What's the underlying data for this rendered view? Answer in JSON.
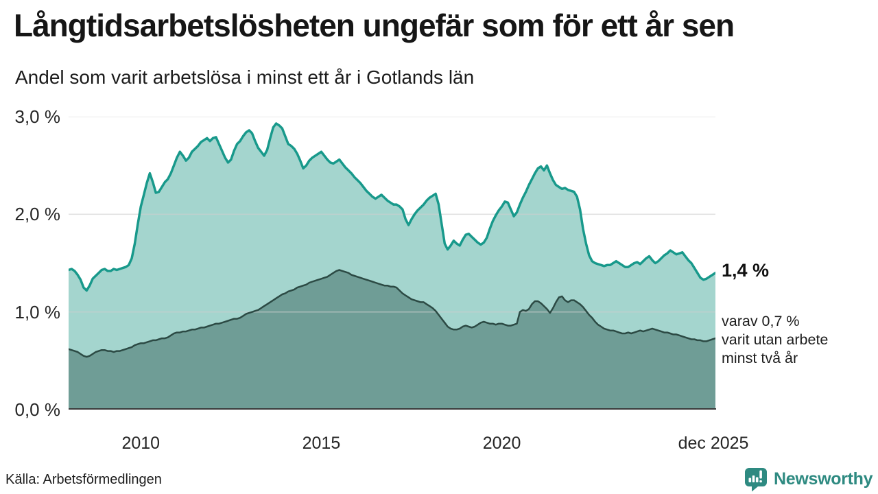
{
  "header": {
    "title": "Långtidsarbetslösheten ungefär som för ett år sen",
    "subtitle": "Andel som varit arbetslösa i minst ett år i Gotlands län"
  },
  "chart_data": {
    "type": "area",
    "title": "Långtidsarbetslösheten ungefär som för ett år sen",
    "subtitle": "Andel som varit arbetslösa i minst ett år i Gotlands län",
    "unit": "%",
    "x_start_year": 2008,
    "x_step_months": 1,
    "x_end": "dec 2025",
    "ylim": [
      0,
      3
    ],
    "grid": true,
    "colors": {
      "grid": "#cfcfcf",
      "baseline": "#3a3a3a",
      "text": "#1c1c1c",
      "brand_teal": "#2e8a81"
    },
    "yticks": [
      {
        "value": 0,
        "label": "0,0 %"
      },
      {
        "value": 1,
        "label": "1,0 %"
      },
      {
        "value": 2,
        "label": "2,0 %"
      },
      {
        "value": 3,
        "label": "3,0 %"
      }
    ],
    "xticks": [
      {
        "year": 2010,
        "label": "2010"
      },
      {
        "year": 2015,
        "label": "2015"
      },
      {
        "year": 2020,
        "label": "2020"
      },
      {
        "year": 2025.917,
        "label": "dec 2025"
      }
    ],
    "series": [
      {
        "name": "arbetslösa minst ett år",
        "line_color": "#18998b",
        "fill_color": "#a4d5ce",
        "end_value_label": "1,4 %",
        "values": [
          1.43,
          1.44,
          1.42,
          1.38,
          1.33,
          1.25,
          1.22,
          1.27,
          1.34,
          1.37,
          1.4,
          1.43,
          1.44,
          1.42,
          1.42,
          1.44,
          1.43,
          1.44,
          1.45,
          1.46,
          1.48,
          1.55,
          1.7,
          1.9,
          2.08,
          2.2,
          2.32,
          2.42,
          2.33,
          2.22,
          2.23,
          2.28,
          2.33,
          2.36,
          2.42,
          2.5,
          2.58,
          2.64,
          2.6,
          2.55,
          2.58,
          2.64,
          2.67,
          2.7,
          2.74,
          2.76,
          2.78,
          2.75,
          2.78,
          2.79,
          2.72,
          2.65,
          2.58,
          2.53,
          2.56,
          2.65,
          2.72,
          2.75,
          2.8,
          2.84,
          2.86,
          2.83,
          2.75,
          2.68,
          2.64,
          2.6,
          2.66,
          2.78,
          2.89,
          2.93,
          2.91,
          2.88,
          2.8,
          2.72,
          2.7,
          2.67,
          2.62,
          2.55,
          2.47,
          2.5,
          2.55,
          2.58,
          2.6,
          2.62,
          2.64,
          2.6,
          2.56,
          2.53,
          2.52,
          2.54,
          2.56,
          2.52,
          2.48,
          2.45,
          2.42,
          2.38,
          2.35,
          2.32,
          2.28,
          2.24,
          2.21,
          2.18,
          2.16,
          2.18,
          2.2,
          2.17,
          2.14,
          2.12,
          2.1,
          2.1,
          2.08,
          2.05,
          1.95,
          1.89,
          1.95,
          2.0,
          2.04,
          2.07,
          2.1,
          2.14,
          2.17,
          2.19,
          2.21,
          2.1,
          1.9,
          1.7,
          1.64,
          1.68,
          1.73,
          1.7,
          1.68,
          1.74,
          1.79,
          1.8,
          1.77,
          1.74,
          1.71,
          1.69,
          1.71,
          1.76,
          1.85,
          1.93,
          1.99,
          2.04,
          2.08,
          2.13,
          2.12,
          2.05,
          1.98,
          2.02,
          2.1,
          2.17,
          2.23,
          2.3,
          2.36,
          2.42,
          2.47,
          2.49,
          2.45,
          2.5,
          2.42,
          2.35,
          2.3,
          2.28,
          2.26,
          2.27,
          2.25,
          2.24,
          2.23,
          2.18,
          2.05,
          1.85,
          1.7,
          1.58,
          1.52,
          1.5,
          1.49,
          1.48,
          1.47,
          1.48,
          1.48,
          1.5,
          1.52,
          1.5,
          1.48,
          1.46,
          1.46,
          1.48,
          1.5,
          1.51,
          1.49,
          1.52,
          1.55,
          1.57,
          1.53,
          1.5,
          1.52,
          1.55,
          1.58,
          1.6,
          1.63,
          1.61,
          1.59,
          1.6,
          1.61,
          1.57,
          1.53,
          1.5,
          1.45,
          1.4,
          1.35,
          1.33,
          1.34,
          1.36,
          1.38,
          1.4
        ]
      },
      {
        "name": "varav utan arbete minst två år",
        "line_color": "#2c4a44",
        "fill_color": "#6f9d96",
        "end_value_label": "0,7 %",
        "values": [
          0.62,
          0.61,
          0.6,
          0.59,
          0.57,
          0.55,
          0.54,
          0.55,
          0.57,
          0.59,
          0.6,
          0.61,
          0.61,
          0.6,
          0.6,
          0.59,
          0.6,
          0.6,
          0.61,
          0.62,
          0.63,
          0.64,
          0.66,
          0.67,
          0.68,
          0.68,
          0.69,
          0.7,
          0.71,
          0.71,
          0.72,
          0.73,
          0.73,
          0.74,
          0.76,
          0.78,
          0.79,
          0.79,
          0.8,
          0.8,
          0.81,
          0.82,
          0.82,
          0.83,
          0.84,
          0.84,
          0.85,
          0.86,
          0.87,
          0.88,
          0.88,
          0.89,
          0.9,
          0.91,
          0.92,
          0.93,
          0.93,
          0.94,
          0.96,
          0.98,
          0.99,
          1.0,
          1.01,
          1.02,
          1.04,
          1.06,
          1.08,
          1.1,
          1.12,
          1.14,
          1.16,
          1.18,
          1.19,
          1.21,
          1.22,
          1.23,
          1.25,
          1.26,
          1.27,
          1.28,
          1.3,
          1.31,
          1.32,
          1.33,
          1.34,
          1.35,
          1.36,
          1.38,
          1.4,
          1.42,
          1.43,
          1.42,
          1.41,
          1.4,
          1.38,
          1.37,
          1.36,
          1.35,
          1.34,
          1.33,
          1.32,
          1.31,
          1.3,
          1.29,
          1.28,
          1.27,
          1.27,
          1.26,
          1.26,
          1.25,
          1.22,
          1.19,
          1.17,
          1.15,
          1.13,
          1.12,
          1.11,
          1.1,
          1.1,
          1.08,
          1.06,
          1.04,
          1.01,
          0.97,
          0.93,
          0.89,
          0.85,
          0.83,
          0.82,
          0.82,
          0.83,
          0.85,
          0.86,
          0.85,
          0.84,
          0.85,
          0.87,
          0.89,
          0.9,
          0.89,
          0.88,
          0.88,
          0.87,
          0.88,
          0.88,
          0.87,
          0.86,
          0.86,
          0.87,
          0.88,
          1.0,
          1.02,
          1.01,
          1.03,
          1.08,
          1.11,
          1.11,
          1.09,
          1.06,
          1.03,
          0.99,
          1.04,
          1.1,
          1.15,
          1.16,
          1.12,
          1.1,
          1.12,
          1.12,
          1.1,
          1.08,
          1.05,
          1.01,
          0.97,
          0.94,
          0.9,
          0.87,
          0.85,
          0.83,
          0.82,
          0.81,
          0.81,
          0.8,
          0.79,
          0.78,
          0.78,
          0.79,
          0.78,
          0.79,
          0.8,
          0.81,
          0.8,
          0.81,
          0.82,
          0.83,
          0.82,
          0.81,
          0.8,
          0.79,
          0.79,
          0.78,
          0.77,
          0.77,
          0.76,
          0.75,
          0.74,
          0.73,
          0.72,
          0.72,
          0.71,
          0.71,
          0.7,
          0.7,
          0.71,
          0.72,
          0.73
        ]
      }
    ],
    "annotations": {
      "end_value_main": "1,4 %",
      "end_note_lines": [
        "varav 0,7 %",
        "varit utan arbete",
        "minst två år"
      ]
    }
  },
  "footer": {
    "source": "Källa: Arbetsförmedlingen",
    "brand": "Newsworthy"
  }
}
